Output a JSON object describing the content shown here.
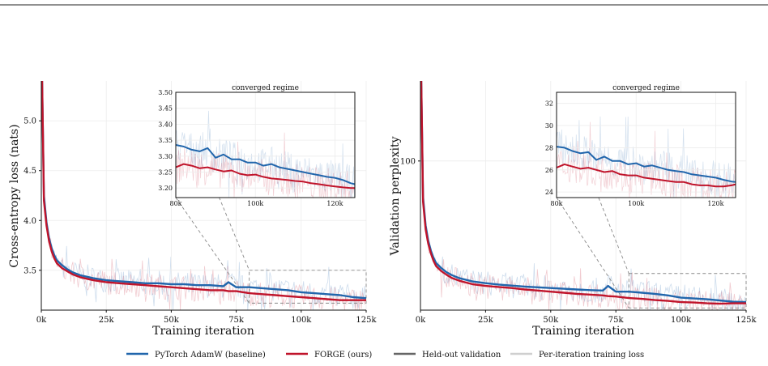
{
  "colors": {
    "baseline": "#2166ac",
    "forge": "#c0142b",
    "validation": "#666666",
    "training": "#cfcfcf"
  },
  "legend": [
    {
      "label": "PyTorch AdamW (baseline)",
      "color": "#2166ac"
    },
    {
      "label": "FORGE (ours)",
      "color": "#c0142b"
    },
    {
      "label": "Held-out validation",
      "color": "#666666"
    },
    {
      "label": "Per-iteration training loss",
      "color": "#cfcfcf"
    }
  ],
  "chart_data": [
    {
      "type": "line",
      "xlabel": "Training iteration",
      "ylabel": "Cross-entropy loss (nats)",
      "xlim": [
        0,
        125000
      ],
      "ylim": [
        3.1,
        5.4
      ],
      "xticks": [
        0,
        25000,
        50000,
        75000,
        100000,
        125000
      ],
      "xtick_labels": [
        "0k",
        "25k",
        "50k",
        "75k",
        "100k",
        "125k"
      ],
      "yticks": [
        3.5,
        4.0,
        4.5,
        5.0
      ],
      "ytick_labels": [
        "3.5",
        "4.0",
        "4.5",
        "5.0"
      ],
      "x": [
        300,
        1000,
        2000,
        3000,
        4000,
        5000,
        6000,
        8000,
        10000,
        12000,
        15000,
        20000,
        25000,
        30000,
        35000,
        40000,
        45000,
        50000,
        55000,
        60000,
        65000,
        70000,
        72000,
        75000,
        80000,
        85000,
        90000,
        95000,
        100000,
        105000,
        110000,
        115000,
        120000,
        125000
      ],
      "series": [
        {
          "name": "PyTorch AdamW (baseline)",
          "values": [
            5.4,
            4.25,
            3.98,
            3.82,
            3.72,
            3.65,
            3.6,
            3.55,
            3.51,
            3.48,
            3.45,
            3.42,
            3.4,
            3.39,
            3.38,
            3.37,
            3.37,
            3.36,
            3.36,
            3.35,
            3.35,
            3.34,
            3.38,
            3.33,
            3.33,
            3.32,
            3.31,
            3.3,
            3.28,
            3.27,
            3.26,
            3.25,
            3.23,
            3.22
          ]
        },
        {
          "name": "FORGE (ours)",
          "values": [
            5.4,
            4.2,
            3.95,
            3.79,
            3.69,
            3.62,
            3.57,
            3.52,
            3.49,
            3.46,
            3.43,
            3.4,
            3.38,
            3.37,
            3.36,
            3.35,
            3.34,
            3.33,
            3.32,
            3.31,
            3.3,
            3.3,
            3.29,
            3.29,
            3.27,
            3.26,
            3.25,
            3.24,
            3.23,
            3.22,
            3.21,
            3.2,
            3.2,
            3.2
          ]
        }
      ],
      "inset": {
        "title": "converged regime",
        "xlim": [
          80000,
          125000
        ],
        "ylim": [
          3.17,
          3.5
        ],
        "xticks": [
          80000,
          100000,
          120000
        ],
        "xtick_labels": [
          "80k",
          "100k",
          "120k"
        ],
        "yticks": [
          3.2,
          3.25,
          3.3,
          3.35,
          3.4,
          3.45,
          3.5
        ],
        "ytick_labels": [
          "3.20",
          "3.25",
          "3.30",
          "3.35",
          "3.40",
          "3.45",
          "3.50"
        ],
        "x": [
          80000,
          82000,
          84000,
          86000,
          88000,
          90000,
          92000,
          94000,
          96000,
          98000,
          100000,
          102000,
          104000,
          106000,
          108000,
          110000,
          112000,
          114000,
          116000,
          118000,
          120000,
          122000,
          124000,
          125000
        ],
        "series": [
          {
            "name": "PyTorch AdamW (baseline)",
            "values": [
              3.335,
              3.33,
              3.32,
              3.315,
              3.325,
              3.295,
              3.305,
              3.29,
              3.29,
              3.28,
              3.28,
              3.27,
              3.275,
              3.265,
              3.26,
              3.255,
              3.25,
              3.245,
              3.24,
              3.235,
              3.232,
              3.225,
              3.215,
              3.212
            ]
          },
          {
            "name": "FORGE (ours)",
            "values": [
              3.265,
              3.275,
              3.27,
              3.262,
              3.265,
              3.258,
              3.252,
              3.255,
              3.245,
              3.24,
              3.242,
              3.235,
              3.23,
              3.228,
              3.225,
              3.222,
              3.22,
              3.215,
              3.212,
              3.208,
              3.205,
              3.202,
              3.2,
              3.2
            ]
          }
        ]
      }
    },
    {
      "type": "line",
      "xlabel": "Training iteration",
      "ylabel": "Validation perplexity",
      "scale": "log",
      "xlim": [
        0,
        125000
      ],
      "ylim": [
        23,
        220
      ],
      "xticks": [
        0,
        25000,
        50000,
        75000,
        100000,
        125000
      ],
      "xtick_labels": [
        "0k",
        "25k",
        "50k",
        "75k",
        "100k",
        "125k"
      ],
      "yticks": [
        100
      ],
      "ytick_labels": [
        "100"
      ],
      "x": [
        300,
        1000,
        2000,
        3000,
        4000,
        5000,
        6000,
        8000,
        10000,
        12000,
        15000,
        20000,
        25000,
        30000,
        35000,
        40000,
        45000,
        50000,
        55000,
        60000,
        65000,
        70000,
        72000,
        75000,
        80000,
        85000,
        90000,
        95000,
        100000,
        105000,
        110000,
        115000,
        120000,
        125000
      ],
      "series": [
        {
          "name": "PyTorch AdamW (baseline)",
          "values": [
            220,
            70,
            53,
            45.6,
            41.3,
            38.5,
            36.6,
            34.8,
            33.4,
            32.5,
            31.5,
            30.5,
            30.0,
            29.6,
            29.3,
            29.0,
            28.8,
            28.6,
            28.4,
            28.2,
            28.0,
            27.9,
            29.2,
            27.6,
            27.6,
            27.3,
            27.0,
            26.6,
            26.0,
            25.8,
            25.6,
            25.3,
            25.0,
            24.9
          ]
        },
        {
          "name": "FORGE (ours)",
          "values": [
            220,
            67,
            51,
            44.3,
            40.2,
            37.4,
            35.5,
            33.8,
            32.6,
            31.6,
            30.7,
            29.7,
            29.2,
            28.9,
            28.6,
            28.2,
            27.9,
            27.6,
            27.3,
            27.0,
            26.8,
            26.6,
            26.4,
            26.3,
            25.9,
            25.7,
            25.4,
            25.2,
            24.9,
            24.8,
            24.6,
            24.5,
            24.6,
            24.6
          ]
        }
      ],
      "inset": {
        "title": "converged regime",
        "xlim": [
          80000,
          125000
        ],
        "ylim": [
          23.5,
          33
        ],
        "xticks": [
          80000,
          100000,
          120000
        ],
        "xtick_labels": [
          "80k",
          "100k",
          "120k"
        ],
        "yticks": [
          24,
          26,
          28,
          30,
          32
        ],
        "ytick_labels": [
          "24",
          "26",
          "28",
          "30",
          "32"
        ],
        "x": [
          80000,
          82000,
          84000,
          86000,
          88000,
          90000,
          92000,
          94000,
          96000,
          98000,
          100000,
          102000,
          104000,
          106000,
          108000,
          110000,
          112000,
          114000,
          116000,
          118000,
          120000,
          122000,
          124000,
          125000
        ],
        "series": [
          {
            "name": "PyTorch AdamW (baseline)",
            "values": [
              28.1,
              28.0,
              27.7,
              27.5,
              27.6,
              26.9,
              27.2,
              26.8,
              26.8,
              26.5,
              26.6,
              26.3,
              26.4,
              26.2,
              26.0,
              25.9,
              25.8,
              25.6,
              25.5,
              25.4,
              25.3,
              25.1,
              24.95,
              24.9
            ]
          },
          {
            "name": "FORGE (ours)",
            "values": [
              26.2,
              26.5,
              26.3,
              26.1,
              26.2,
              26.0,
              25.8,
              25.9,
              25.6,
              25.5,
              25.5,
              25.3,
              25.2,
              25.1,
              25.0,
              24.9,
              24.9,
              24.7,
              24.6,
              24.6,
              24.5,
              24.5,
              24.6,
              24.7
            ]
          }
        ]
      }
    }
  ]
}
